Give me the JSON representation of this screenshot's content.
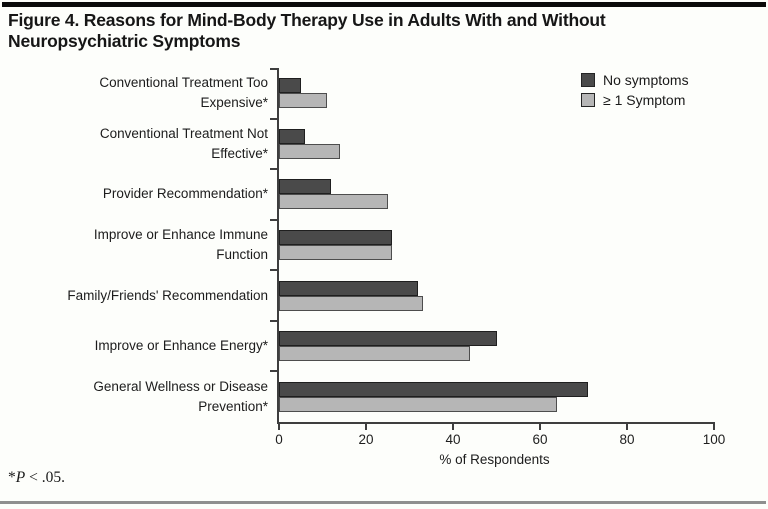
{
  "header": {
    "title_line1": "Figure 4. Reasons for Mind-Body Therapy Use in Adults With and Without",
    "title_line2": "Neuropsychiatric Symptoms"
  },
  "chart_data": {
    "type": "bar",
    "orientation": "horizontal",
    "title": "Figure 4. Reasons for Mind-Body Therapy Use in Adults With and Without Neuropsychiatric Symptoms",
    "categories": [
      "Conventional Treatment Too Expensive*",
      "Conventional Treatment Not Effective*",
      "Provider Recommendation*",
      "Improve or Enhance Immune Function",
      "Family/Friends' Recommendation",
      "Improve or Enhance Energy*",
      "General Wellness or Disease Prevention*"
    ],
    "category_lines": [
      [
        "Conventional Treatment Too",
        "Expensive*"
      ],
      [
        "Conventional Treatment Not",
        "Effective*"
      ],
      [
        "Provider Recommendation*"
      ],
      [
        "Improve or Enhance Immune",
        "Function"
      ],
      [
        "Family/Friends' Recommendation"
      ],
      [
        "Improve or Enhance Energy*"
      ],
      [
        "General Wellness or Disease",
        "Prevention*"
      ]
    ],
    "series": [
      {
        "name": "No symptoms",
        "color": "#4a4a4a",
        "border_color": "#1f1f1f",
        "values": [
          5,
          6,
          12,
          26,
          32,
          50,
          71
        ]
      },
      {
        "name": "≥ 1 Symptom",
        "color": "#b6b6b6",
        "border_color": "#4d4d4d",
        "values": [
          11,
          14,
          25,
          26,
          33,
          44,
          64
        ]
      }
    ],
    "xlabel": "% of Respondents",
    "xlim": [
      0,
      100
    ],
    "xticks": [
      0,
      20,
      40,
      60,
      80,
      100
    ],
    "legend_position": "top-right",
    "grid": false,
    "axis_color": "#3e3e3e"
  },
  "footnote": {
    "prefix": "*",
    "symbol": "P",
    "rest": " < .05."
  }
}
